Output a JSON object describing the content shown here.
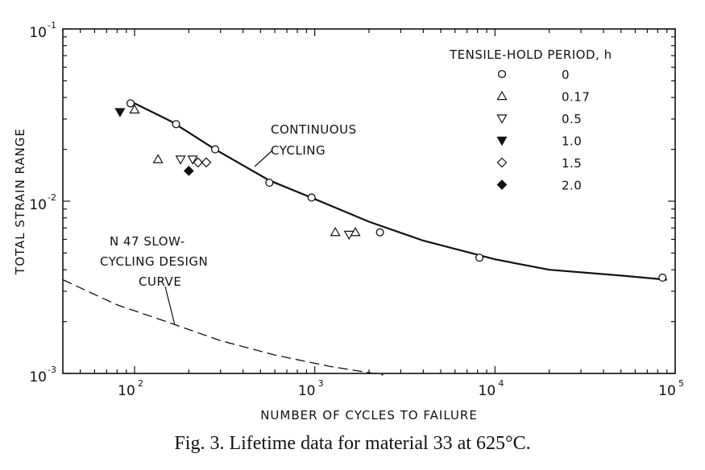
{
  "caption": "Fig. 3. Lifetime data for material 33 at 625°C.",
  "chart_data": {
    "type": "scatter",
    "xlabel": "NUMBER OF CYCLES TO FAILURE",
    "ylabel": "TOTAL STRAIN RANGE",
    "xscale": "log",
    "yscale": "log",
    "xlim": [
      40,
      100000
    ],
    "ylim": [
      0.001,
      0.1
    ],
    "x_ticks": [
      {
        "value": 100,
        "base": "10",
        "exp": "2"
      },
      {
        "value": 1000,
        "base": "10",
        "exp": "3"
      },
      {
        "value": 10000,
        "base": "10",
        "exp": "4"
      },
      {
        "value": 100000,
        "base": "10",
        "exp": "5"
      }
    ],
    "y_ticks": [
      {
        "value": 0.001,
        "base": "10",
        "exp": "-3"
      },
      {
        "value": 0.01,
        "base": "10",
        "exp": "-2"
      },
      {
        "value": 0.1,
        "base": "10",
        "exp": "-1"
      }
    ],
    "legend_title": "TENSILE-HOLD PERIOD, h",
    "legend_position": "top-right",
    "series": [
      {
        "name": "0",
        "marker": "open-circle",
        "points": [
          [
            95,
            0.037
          ],
          [
            170,
            0.028
          ],
          [
            280,
            0.02
          ],
          [
            560,
            0.0128
          ],
          [
            960,
            0.0105
          ],
          [
            2300,
            0.0066
          ],
          [
            8200,
            0.0047
          ],
          [
            85000,
            0.0036
          ]
        ]
      },
      {
        "name": "0.17",
        "marker": "open-triangle-up",
        "points": [
          [
            100,
            0.034
          ],
          [
            135,
            0.0175
          ],
          [
            1300,
            0.0066
          ],
          [
            1680,
            0.0066
          ]
        ]
      },
      {
        "name": "0.5",
        "marker": "open-triangle-down",
        "points": [
          [
            180,
            0.0175
          ],
          [
            210,
            0.0175
          ],
          [
            1550,
            0.0064
          ]
        ]
      },
      {
        "name": "1.0",
        "marker": "filled-triangle-down",
        "points": [
          [
            83,
            0.033
          ]
        ]
      },
      {
        "name": "1.5",
        "marker": "open-diamond",
        "points": [
          [
            225,
            0.0168
          ],
          [
            250,
            0.0168
          ]
        ]
      },
      {
        "name": "2.0",
        "marker": "filled-diamond",
        "points": [
          [
            200,
            0.015
          ]
        ]
      }
    ],
    "curves": [
      {
        "name": "CONTINUOUS CYCLING",
        "style": "solid",
        "points": [
          [
            100,
            0.037
          ],
          [
            160,
            0.029
          ],
          [
            280,
            0.02
          ],
          [
            560,
            0.0132
          ],
          [
            1000,
            0.0103
          ],
          [
            2000,
            0.0076
          ],
          [
            4000,
            0.0059
          ],
          [
            10000,
            0.0046
          ],
          [
            20000,
            0.004
          ],
          [
            50000,
            0.0037
          ],
          [
            90000,
            0.0035
          ]
        ]
      },
      {
        "name": "N 47 SLOW-CYCLING DESIGN CURVE",
        "style": "dashed",
        "points": [
          [
            40,
            0.0035
          ],
          [
            80,
            0.0025
          ],
          [
            150,
            0.002
          ],
          [
            300,
            0.00155
          ],
          [
            600,
            0.00128
          ],
          [
            1200,
            0.0011
          ],
          [
            2400,
            0.00098
          ]
        ]
      }
    ],
    "annotations": [
      {
        "lines": [
          "CONTINUOUS",
          "CYCLING"
        ],
        "x_anchor": "upper-middle"
      },
      {
        "lines": [
          "N 47 SLOW-",
          "CYCLING DESIGN",
          "CURVE"
        ],
        "x_anchor": "lower-left"
      }
    ]
  }
}
